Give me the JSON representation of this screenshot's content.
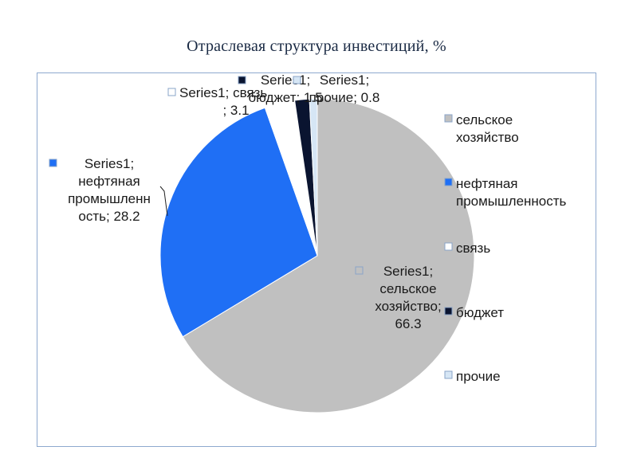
{
  "chart_data": {
    "type": "pie",
    "title": "Отраслевая структура  инвестиций,  %",
    "series": [
      {
        "name": "Series1",
        "categories": [
          "сельское хозяйство",
          "нефтяная промышленность",
          "связь",
          "бюджет",
          "прочие"
        ],
        "values": [
          66.3,
          28.2,
          3.1,
          1.5,
          0.8
        ],
        "colors": [
          "#c0c0c0",
          "#1f6ff5",
          "#ffffff",
          "#0a1430",
          "#d6e6f5"
        ]
      }
    ],
    "data_labels": [
      [
        "Series1;",
        "сельское",
        "хозяйство;",
        "66.3"
      ],
      [
        "Series1;",
        "нефтяная",
        "промышленн",
        "ость; 28.2"
      ],
      [
        "Series1; связь",
        "; 3.1"
      ],
      [
        "Series1;",
        "бюджет; 1.5"
      ],
      [
        "Series1;",
        "прочие; 0.8"
      ]
    ],
    "legend": {
      "position": "right",
      "entries": [
        "сельское хозяйство",
        "нефтяная промышленность",
        "связь",
        "бюджет",
        "прочие"
      ],
      "lines": [
        [
          "сельское",
          "хозяйство"
        ],
        [
          "нефтяная",
          "промышленность"
        ],
        [
          "связь"
        ],
        [
          "бюджет"
        ],
        [
          "прочие"
        ]
      ]
    }
  }
}
